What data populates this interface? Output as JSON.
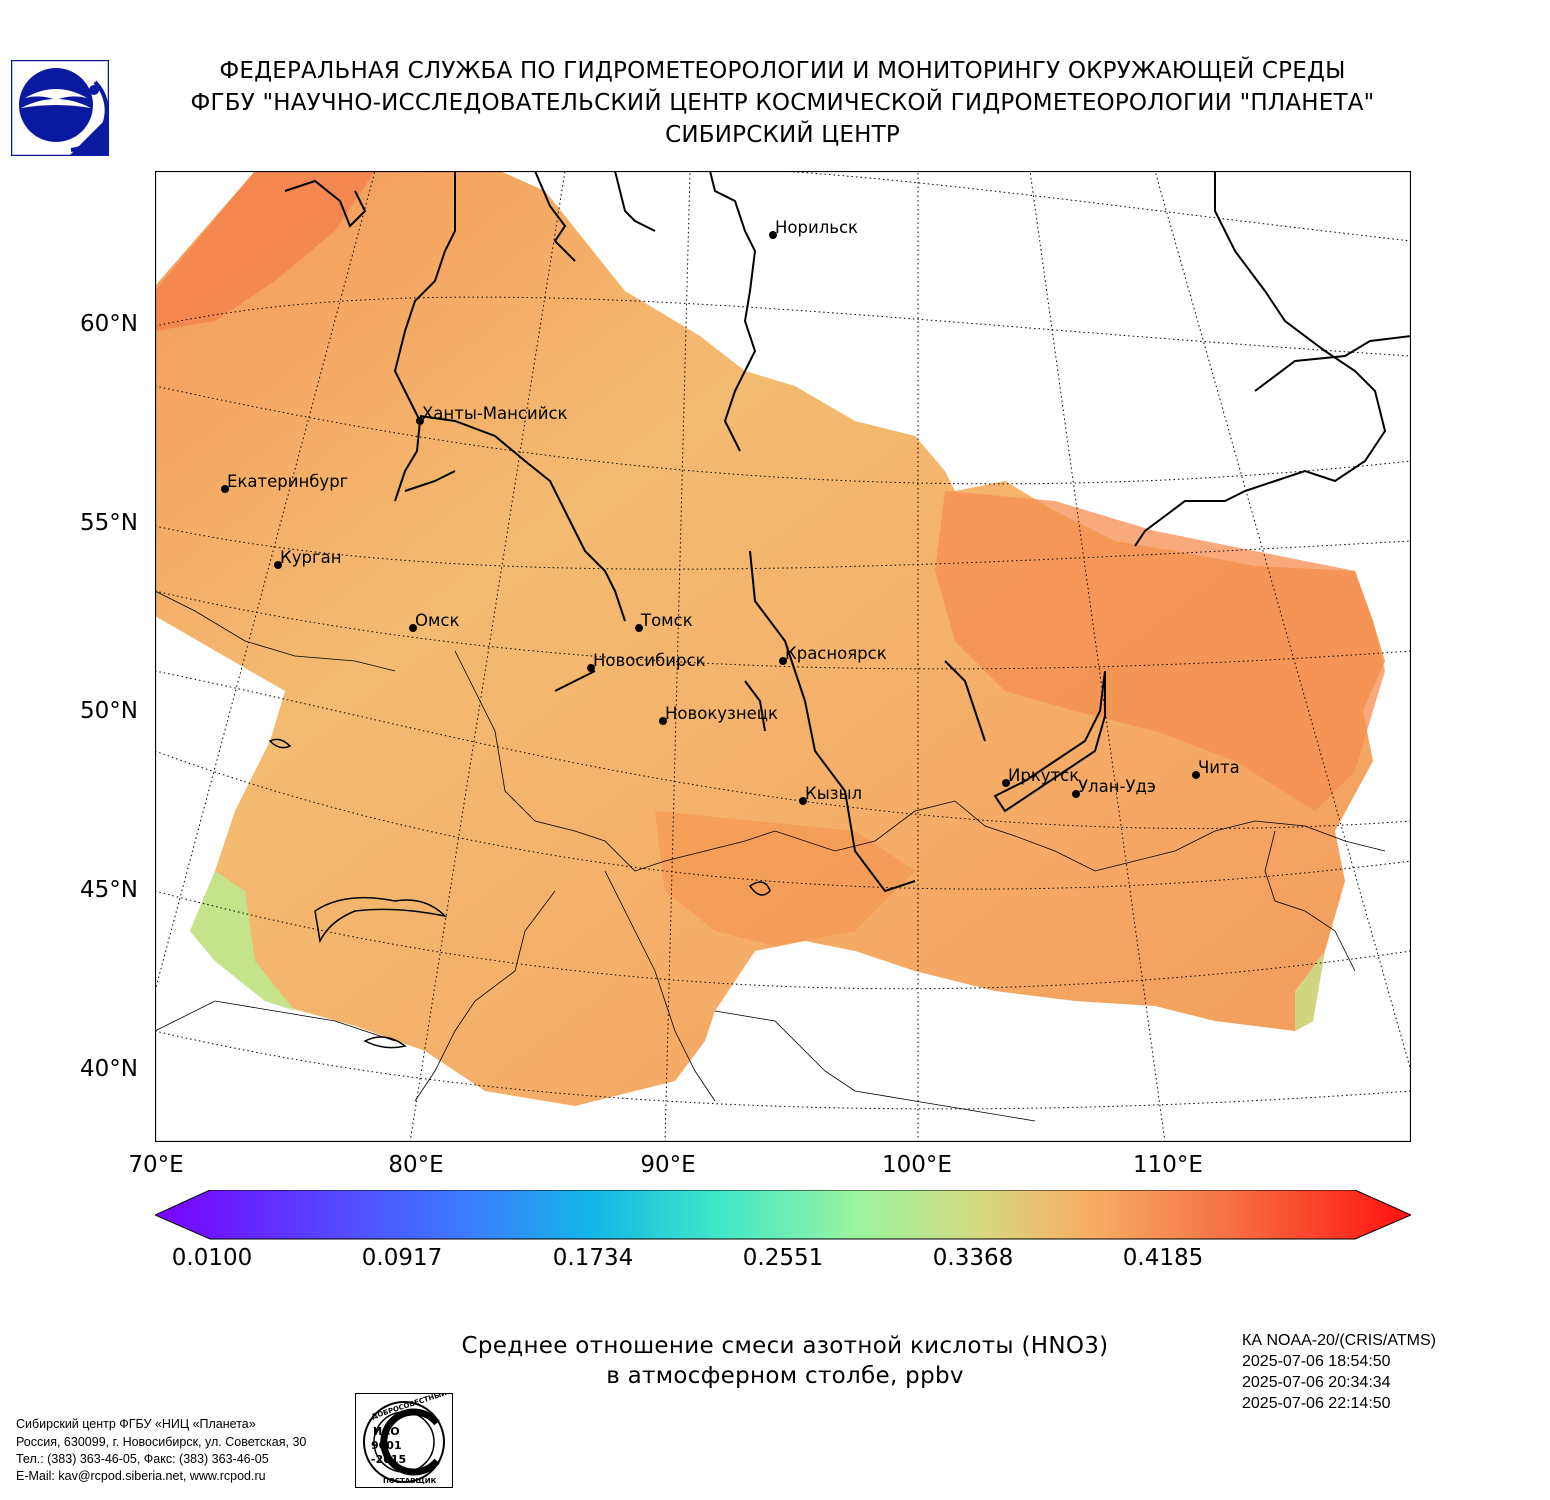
{
  "header": {
    "line1": "ФЕДЕРАЛЬНАЯ СЛУЖБА ПО ГИДРОМЕТЕОРОЛОГИИ И МОНИТОРИНГУ ОКРУЖАЮЩЕЙ СРЕДЫ",
    "line2": "ФГБУ \"НАУЧНО-ИССЛЕДОВАТЕЛЬСКИЙ ЦЕНТР КОСМИЧЕСКОЙ ГИДРОМЕТЕОРОЛОГИИ \"ПЛАНЕТА\"",
    "line3": "СИБИРСКИЙ ЦЕНТР"
  },
  "map": {
    "lat_labels": [
      "60°N",
      "55°N",
      "50°N",
      "45°N",
      "40°N"
    ],
    "lon_labels": [
      "70°E",
      "80°E",
      "90°E",
      "100°E",
      "110°E"
    ],
    "cities": [
      {
        "name": "Норильск"
      },
      {
        "name": "Ханты-Мансийск"
      },
      {
        "name": "Екатеринбург"
      },
      {
        "name": "Курган"
      },
      {
        "name": "Омск"
      },
      {
        "name": "Томск"
      },
      {
        "name": "Новосибирск"
      },
      {
        "name": "Красноярск"
      },
      {
        "name": "Новокузнецк"
      },
      {
        "name": "Кызыл"
      },
      {
        "name": "Иркутск"
      },
      {
        "name": "Улан-Удэ"
      },
      {
        "name": "Чита"
      }
    ],
    "colors": {
      "field_low": "#f2c77a",
      "field_mid": "#f6ad66",
      "field_high": "#f68a4e",
      "field_green": "#b8e68a",
      "coast": "#000000"
    }
  },
  "colorbar": {
    "ticks": [
      "0.0100",
      "0.0917",
      "0.1734",
      "0.2551",
      "0.3368",
      "0.4185"
    ],
    "colors": [
      "#7a00ff",
      "#5a3cff",
      "#3c7cff",
      "#1eb6e8",
      "#40e8c8",
      "#9cf4a0",
      "#d8d880",
      "#f6b064",
      "#f67446",
      "#ff2010"
    ]
  },
  "caption": {
    "line1": "Среднее отношение смеси азотной кислоты (HNO3)",
    "line2": "в атмосферном столбе, ppbv"
  },
  "satellite": {
    "name": "КА NOAA-20/(CRIS/ATMS)",
    "times": [
      "2025-07-06 18:54:50",
      "2025-07-06 20:34:34",
      "2025-07-06 22:14:50"
    ]
  },
  "contact": {
    "line1": "Сибирский центр ФГБУ «НИЦ «Планета»",
    "line2": "Россия, 630099, г. Новосибирск, ул. Советская, 30",
    "line3": "Тел.: (383) 363-46-05, Факс: (383) 363-46-05",
    "line4": "E-Mail: kav@rcpod.siberia.net, www.rcpod.ru"
  },
  "iso_badge": {
    "top_text": "ДОБРОСОВЕСТНЫЙ",
    "iso": "ИСО",
    "number": "9001",
    "year": "-2015",
    "bottom_text": "ПОСТАВЩИК"
  },
  "logo": {
    "icon": "planeta-logo"
  }
}
